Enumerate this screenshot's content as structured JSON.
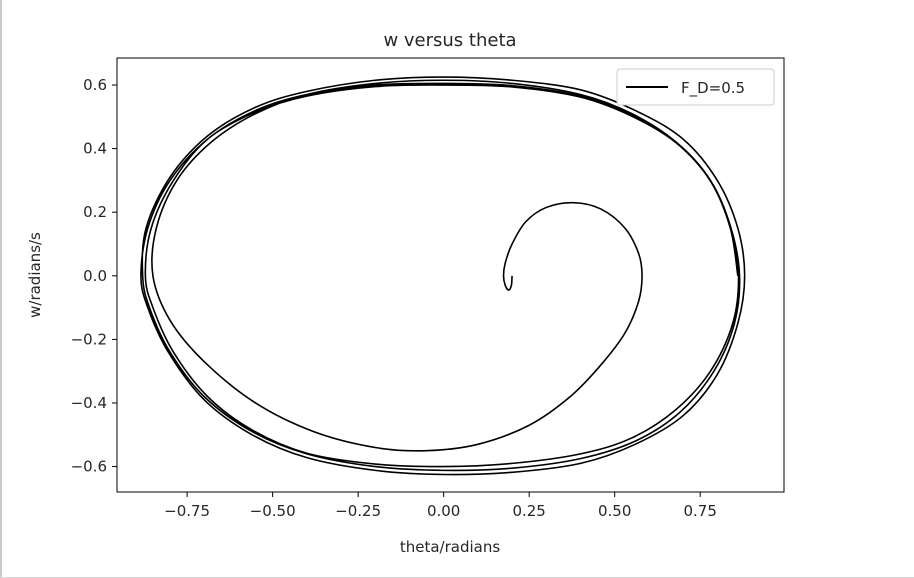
{
  "chart_data": {
    "type": "line",
    "title": "w versus theta",
    "xlabel": "theta/radians",
    "ylabel": "w/radians/s",
    "xlim": [
      -0.955,
      0.995
    ],
    "ylim": [
      -0.68,
      0.685
    ],
    "xticks": [
      -0.75,
      -0.5,
      -0.25,
      0.0,
      0.25,
      0.5,
      0.75
    ],
    "xtick_labels": [
      "−0.75",
      "−0.50",
      "−0.25",
      "0.00",
      "0.25",
      "0.50",
      "0.75"
    ],
    "yticks": [
      0.6,
      0.4,
      0.2,
      0.0,
      -0.2,
      -0.4,
      -0.6
    ],
    "ytick_labels": [
      "0.6",
      "0.4",
      "0.2",
      "0.0",
      "−0.2",
      "−0.4",
      "−0.6"
    ],
    "grid": false,
    "legend_position": "top-right",
    "series": [
      {
        "name": "F_D=0.5",
        "color": "#000000",
        "points": [
          [
            0.2,
            0.0
          ],
          [
            0.198,
            -0.03
          ],
          [
            0.19,
            -0.045
          ],
          [
            0.18,
            -0.03
          ],
          [
            0.175,
            0.0
          ],
          [
            0.18,
            0.04
          ],
          [
            0.2,
            0.1
          ],
          [
            0.24,
            0.17
          ],
          [
            0.3,
            0.215
          ],
          [
            0.38,
            0.23
          ],
          [
            0.46,
            0.21
          ],
          [
            0.53,
            0.15
          ],
          [
            0.57,
            0.07
          ],
          [
            0.58,
            0.0
          ],
          [
            0.57,
            -0.08
          ],
          [
            0.53,
            -0.18
          ],
          [
            0.46,
            -0.28
          ],
          [
            0.37,
            -0.38
          ],
          [
            0.25,
            -0.47
          ],
          [
            0.1,
            -0.53
          ],
          [
            -0.05,
            -0.55
          ],
          [
            -0.2,
            -0.54
          ],
          [
            -0.38,
            -0.49
          ],
          [
            -0.55,
            -0.4
          ],
          [
            -0.7,
            -0.27
          ],
          [
            -0.8,
            -0.14
          ],
          [
            -0.85,
            0.0
          ],
          [
            -0.84,
            0.15
          ],
          [
            -0.78,
            0.3
          ],
          [
            -0.68,
            0.42
          ],
          [
            -0.55,
            0.51
          ],
          [
            -0.4,
            0.57
          ],
          [
            -0.2,
            0.605
          ],
          [
            0.0,
            0.615
          ],
          [
            0.2,
            0.605
          ],
          [
            0.4,
            0.57
          ],
          [
            0.55,
            0.51
          ],
          [
            0.68,
            0.42
          ],
          [
            0.78,
            0.3
          ],
          [
            0.84,
            0.15
          ],
          [
            0.865,
            0.0
          ],
          [
            0.85,
            -0.15
          ],
          [
            0.79,
            -0.3
          ],
          [
            0.69,
            -0.43
          ],
          [
            0.56,
            -0.52
          ],
          [
            0.4,
            -0.575
          ],
          [
            0.2,
            -0.605
          ],
          [
            0.0,
            -0.612
          ],
          [
            -0.2,
            -0.6
          ],
          [
            -0.4,
            -0.56
          ],
          [
            -0.56,
            -0.49
          ],
          [
            -0.7,
            -0.38
          ],
          [
            -0.8,
            -0.24
          ],
          [
            -0.86,
            -0.1
          ],
          [
            -0.88,
            0.0
          ],
          [
            -0.87,
            0.15
          ],
          [
            -0.8,
            0.31
          ],
          [
            -0.69,
            0.44
          ],
          [
            -0.55,
            0.53
          ],
          [
            -0.4,
            0.58
          ],
          [
            -0.2,
            0.615
          ],
          [
            0.0,
            0.625
          ],
          [
            0.2,
            0.615
          ],
          [
            0.4,
            0.585
          ],
          [
            0.56,
            0.52
          ],
          [
            0.7,
            0.43
          ],
          [
            0.8,
            0.3
          ],
          [
            0.86,
            0.15
          ],
          [
            0.88,
            0.0
          ],
          [
            0.86,
            -0.15
          ],
          [
            0.8,
            -0.31
          ],
          [
            0.7,
            -0.44
          ],
          [
            0.56,
            -0.53
          ],
          [
            0.4,
            -0.59
          ],
          [
            0.2,
            -0.618
          ],
          [
            0.0,
            -0.625
          ],
          [
            -0.2,
            -0.612
          ],
          [
            -0.4,
            -0.572
          ],
          [
            -0.56,
            -0.5
          ],
          [
            -0.7,
            -0.39
          ],
          [
            -0.805,
            -0.24
          ],
          [
            -0.865,
            -0.1
          ],
          [
            -0.885,
            0.0
          ],
          [
            -0.865,
            0.15
          ],
          [
            -0.8,
            0.3
          ],
          [
            -0.69,
            0.43
          ],
          [
            -0.55,
            0.52
          ],
          [
            -0.4,
            0.57
          ],
          [
            -0.2,
            0.6
          ],
          [
            0.0,
            0.605
          ],
          [
            0.2,
            0.598
          ],
          [
            0.4,
            0.565
          ],
          [
            0.55,
            0.505
          ],
          [
            0.68,
            0.42
          ],
          [
            0.78,
            0.3
          ],
          [
            0.84,
            0.15
          ],
          [
            0.862,
            0.0
          ],
          [
            0.845,
            -0.15
          ],
          [
            0.78,
            -0.3
          ],
          [
            0.68,
            -0.42
          ],
          [
            0.55,
            -0.51
          ],
          [
            0.4,
            -0.56
          ],
          [
            0.2,
            -0.59
          ],
          [
            0.0,
            -0.6
          ],
          [
            -0.2,
            -0.592
          ],
          [
            -0.4,
            -0.558
          ],
          [
            -0.56,
            -0.485
          ],
          [
            -0.69,
            -0.38
          ],
          [
            -0.79,
            -0.24
          ],
          [
            -0.85,
            -0.1
          ],
          [
            -0.872,
            0.0
          ],
          [
            -0.855,
            0.15
          ],
          [
            -0.79,
            0.3
          ],
          [
            -0.69,
            0.43
          ],
          [
            -0.55,
            0.515
          ],
          [
            -0.4,
            0.565
          ],
          [
            -0.2,
            0.595
          ],
          [
            0.0,
            0.6
          ],
          [
            0.2,
            0.594
          ],
          [
            0.4,
            0.562
          ],
          [
            0.55,
            0.502
          ],
          [
            0.68,
            0.418
          ],
          [
            0.78,
            0.298
          ],
          [
            0.838,
            0.15
          ],
          [
            0.86,
            0.0
          ]
        ]
      }
    ]
  }
}
